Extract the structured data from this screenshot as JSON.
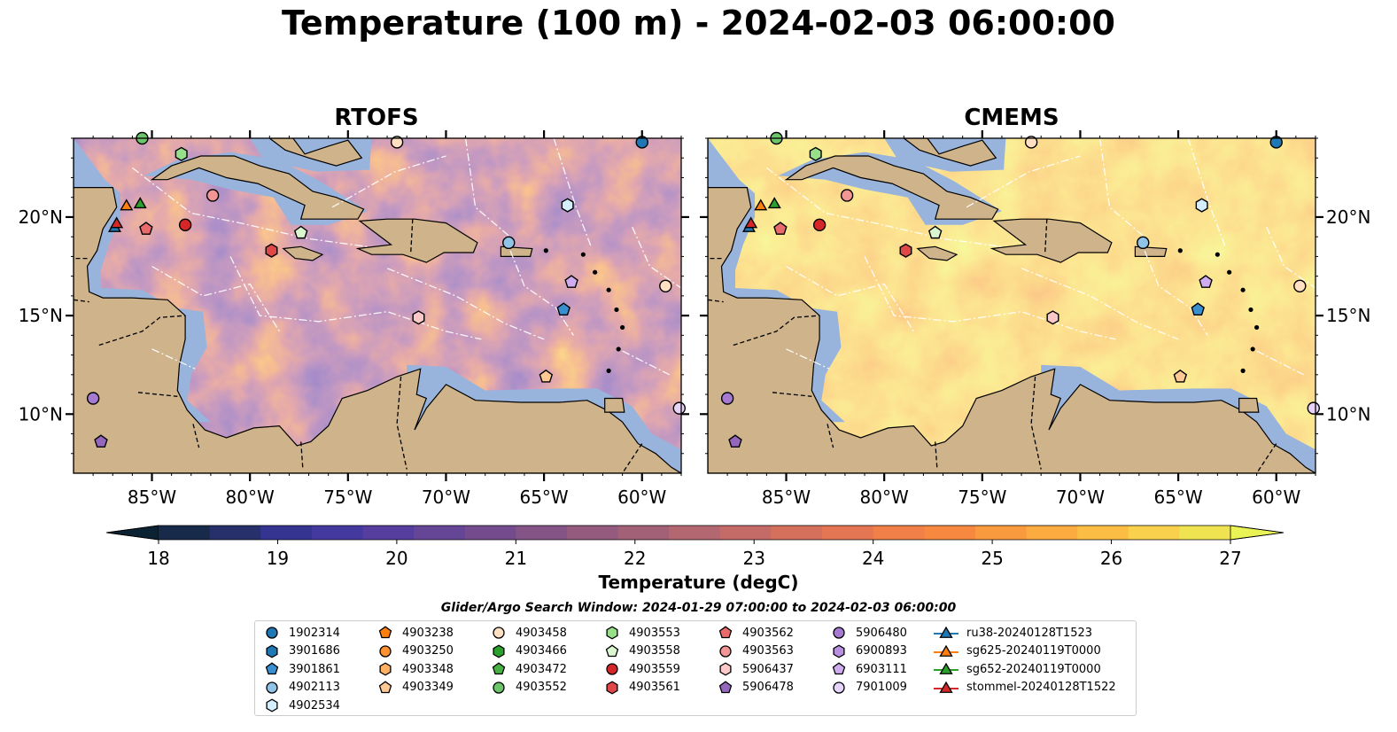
{
  "title": "Temperature (100 m) - 2024-02-03 06:00:00",
  "panels": [
    {
      "title": "RTOFS",
      "palette": "warm_lo"
    },
    {
      "title": "CMEMS",
      "palette": "warm_hi"
    }
  ],
  "axes": {
    "lon_ticks": [
      "85°W",
      "80°W",
      "75°W",
      "70°W",
      "65°W",
      "60°W"
    ],
    "lat_ticks": [
      "20°N",
      "15°N",
      "10°N"
    ],
    "lon_values": [
      -85,
      -80,
      -75,
      -70,
      -65,
      -60
    ],
    "lat_values": [
      20,
      15,
      10
    ],
    "lon_range": [
      -89,
      -58
    ],
    "lat_range": [
      7,
      24
    ]
  },
  "colorbar": {
    "label": "Temperature (degC)",
    "ticks": [
      "18",
      "19",
      "20",
      "21",
      "22",
      "23",
      "24",
      "25",
      "26",
      "27"
    ],
    "vmin": 18,
    "vmax": 27,
    "extend": "both",
    "colors": [
      "#0b2233",
      "#182a49",
      "#27306b",
      "#353591",
      "#44399f",
      "#553e9e",
      "#654596",
      "#744c8e",
      "#845487",
      "#945b7f",
      "#a36178",
      "#b36771",
      "#c46b67",
      "#d5705d",
      "#e47653",
      "#f07f48",
      "#f6893f",
      "#f99a3e",
      "#fbab40",
      "#fcbd44",
      "#f9d14d",
      "#f0e351",
      "#e9f356"
    ]
  },
  "search_window": "Glider/Argo Search Window: 2024-01-29 07:00:00 to 2024-02-03 06:00:00",
  "legend": [
    {
      "label": "1902314",
      "marker": "circle",
      "color": "#1f77b4"
    },
    {
      "label": "3901686",
      "marker": "hexagon",
      "color": "#1f77b4"
    },
    {
      "label": "3901861",
      "marker": "pentagon",
      "color": "#3a8fd1"
    },
    {
      "label": "4902113",
      "marker": "circle",
      "color": "#8fc4e8"
    },
    {
      "label": "4902534",
      "marker": "hexagon",
      "color": "#d4eefc"
    },
    {
      "label": "4903238",
      "marker": "pentagon",
      "color": "#ff7f0e"
    },
    {
      "label": "4903250",
      "marker": "circle",
      "color": "#ff922e"
    },
    {
      "label": "4903348",
      "marker": "hexagon",
      "color": "#ffb063"
    },
    {
      "label": "4903349",
      "marker": "pentagon",
      "color": "#ffc994"
    },
    {
      "label": "4903458",
      "marker": "circle",
      "color": "#ffe0c2"
    },
    {
      "label": "4903466",
      "marker": "hexagon",
      "color": "#2ca02c"
    },
    {
      "label": "4903472",
      "marker": "pentagon",
      "color": "#46b043"
    },
    {
      "label": "4903552",
      "marker": "circle",
      "color": "#6cc56a"
    },
    {
      "label": "4903553",
      "marker": "hexagon",
      "color": "#98df8a"
    },
    {
      "label": "4903558",
      "marker": "pentagon",
      "color": "#dbf7cf"
    },
    {
      "label": "4903559",
      "marker": "circle",
      "color": "#d62728"
    },
    {
      "label": "4903561",
      "marker": "hexagon",
      "color": "#e04848"
    },
    {
      "label": "4903562",
      "marker": "pentagon",
      "color": "#e86a6a"
    },
    {
      "label": "4903563",
      "marker": "circle",
      "color": "#f29595"
    },
    {
      "label": "5906437",
      "marker": "hexagon",
      "color": "#fcc8c8"
    },
    {
      "label": "5906478",
      "marker": "pentagon",
      "color": "#9467bd"
    },
    {
      "label": "5906480",
      "marker": "circle",
      "color": "#a57ad0"
    },
    {
      "label": "6900893",
      "marker": "hexagon",
      "color": "#b98fe0"
    },
    {
      "label": "6903111",
      "marker": "pentagon",
      "color": "#cfacf0"
    },
    {
      "label": "7901009",
      "marker": "circle",
      "color": "#e8d3fb"
    },
    {
      "label": "ru38-20240128T1523",
      "marker": "triangle-line",
      "color": "#1f77b4"
    },
    {
      "label": "sg625-20240119T0000",
      "marker": "triangle-line",
      "color": "#ff7f0e"
    },
    {
      "label": "sg652-20240119T0000",
      "marker": "triangle-line",
      "color": "#2ca02c"
    },
    {
      "label": "stommel-20240128T1522",
      "marker": "triangle-line",
      "color": "#d62728"
    }
  ],
  "floats": [
    {
      "label": "1902314",
      "lon": -60.0,
      "lat": 23.8
    },
    {
      "label": "3901861",
      "lon": -64.0,
      "lat": 15.3
    },
    {
      "label": "4902113",
      "lon": -66.8,
      "lat": 18.7
    },
    {
      "label": "4902534",
      "lon": -63.8,
      "lat": 20.6
    },
    {
      "label": "4903349",
      "lon": -64.9,
      "lat": 11.9
    },
    {
      "label": "4903458",
      "lon": -58.8,
      "lat": 16.5
    },
    {
      "label": "4903458",
      "lon": -72.5,
      "lat": 23.8
    },
    {
      "label": "4903552",
      "lon": -85.5,
      "lat": 24.0
    },
    {
      "label": "4903553",
      "lon": -83.5,
      "lat": 23.2
    },
    {
      "label": "4903558",
      "lon": -77.4,
      "lat": 19.2
    },
    {
      "label": "4903559",
      "lon": -83.3,
      "lat": 19.6
    },
    {
      "label": "4903561",
      "lon": -78.9,
      "lat": 18.3
    },
    {
      "label": "4903562",
      "lon": -85.3,
      "lat": 19.4
    },
    {
      "label": "4903563",
      "lon": -81.9,
      "lat": 21.1
    },
    {
      "label": "5906437",
      "lon": -71.4,
      "lat": 14.9
    },
    {
      "label": "5906478",
      "lon": -87.6,
      "lat": 8.6
    },
    {
      "label": "5906480",
      "lon": -88.0,
      "lat": 10.8
    },
    {
      "label": "6903111",
      "lon": -63.6,
      "lat": 16.7
    },
    {
      "label": "7901009",
      "lon": -58.1,
      "lat": 10.3
    },
    {
      "label": "ru38-20240128T1523",
      "lon": -86.9,
      "lat": 19.5
    },
    {
      "label": "sg625-20240119T0000",
      "lon": -86.3,
      "lat": 20.6
    },
    {
      "label": "sg652-20240119T0000",
      "lon": -85.6,
      "lat": 20.7
    },
    {
      "label": "stommel-20240128T1522",
      "lon": -86.8,
      "lat": 19.7
    }
  ],
  "colors": {
    "land": "#cfb38a",
    "shelf": "#98b4dd",
    "coast": "#000000",
    "border": "#000000",
    "eez": "#ffffff"
  }
}
